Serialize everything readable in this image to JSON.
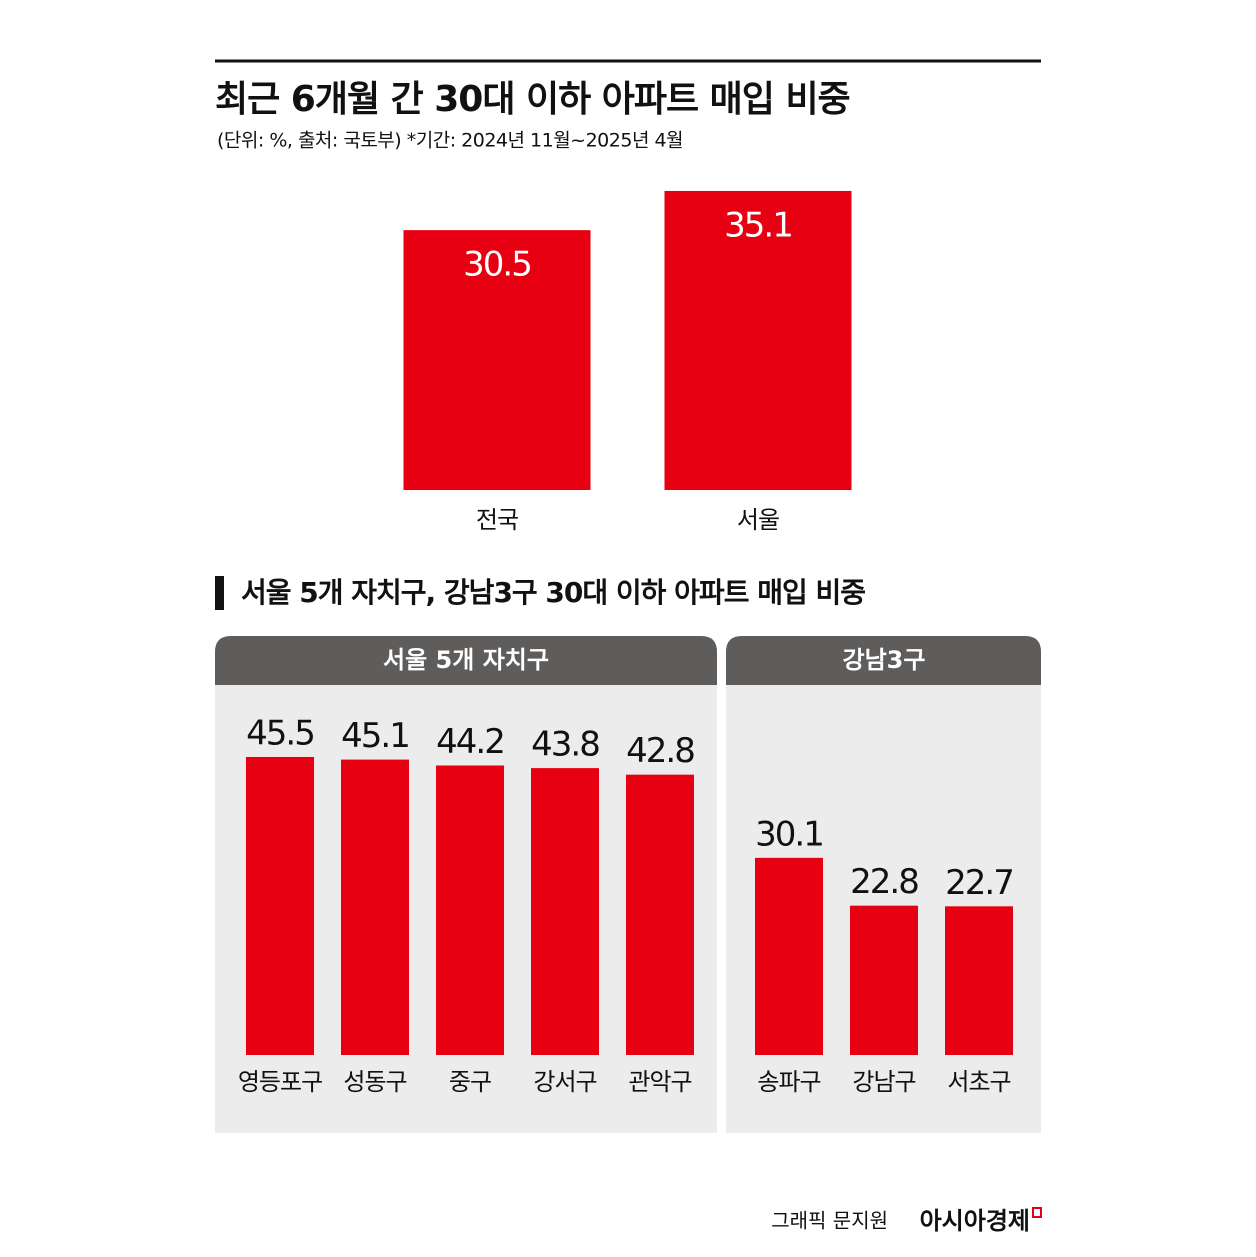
{
  "title": "최근 6개월 간 30대 이하 아파트 매입 비중",
  "subtitle": "(단위: %, 출처: 국토부)  *기간: 2024년 11월~2025년 4월",
  "section_title": "서울 5개 자치구, 강남3구 30대 이하 아파트 매입 비중",
  "credit": "그래픽 문지원",
  "brand": "아시아경제",
  "chart_data": [
    {
      "type": "bar",
      "categories": [
        "전국",
        "서울"
      ],
      "values": [
        30.5,
        35.1
      ],
      "color": "#e60012"
    },
    {
      "type": "bar",
      "title": "서울 5개 자치구",
      "categories": [
        "영등포구",
        "성동구",
        "중구",
        "강서구",
        "관악구"
      ],
      "values": [
        45.5,
        45.1,
        44.2,
        43.8,
        42.8
      ],
      "color": "#e60012"
    },
    {
      "type": "bar",
      "title": "강남3구",
      "categories": [
        "송파구",
        "강남구",
        "서초구"
      ],
      "values": [
        30.1,
        22.8,
        22.7
      ],
      "color": "#e60012"
    }
  ]
}
